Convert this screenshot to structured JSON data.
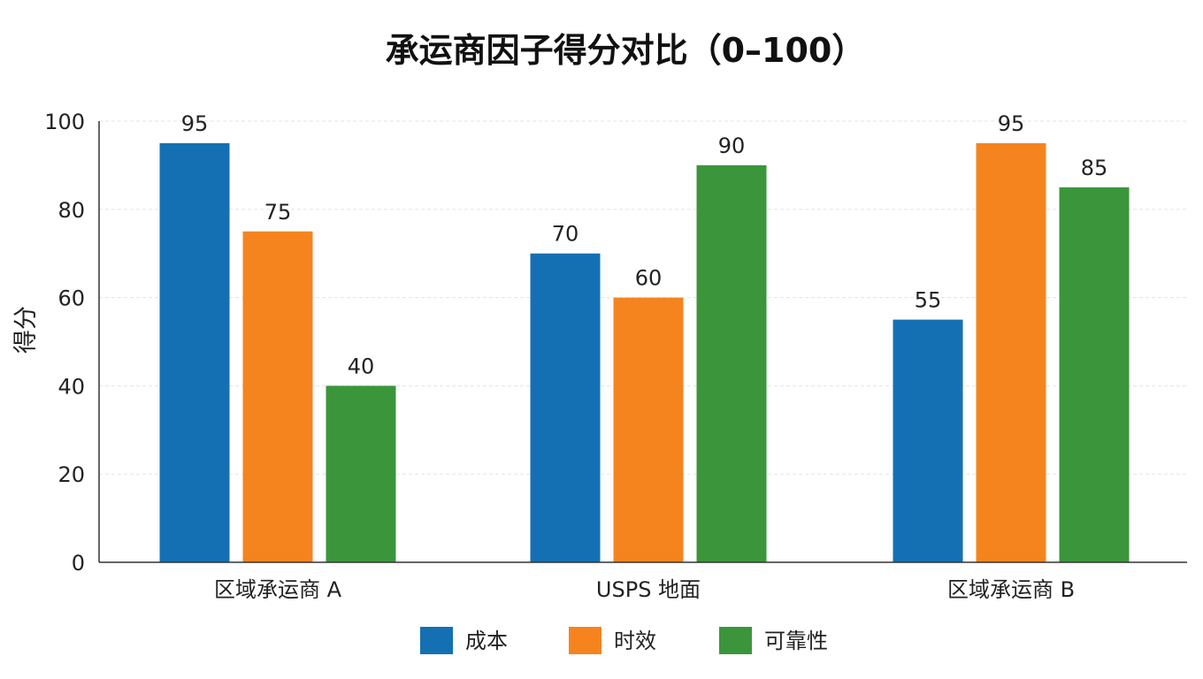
{
  "chart_data": {
    "type": "bar",
    "title": "承运商因子得分对比（0–100）",
    "xlabel": "",
    "ylabel": "得分",
    "ylim": [
      0,
      100
    ],
    "yticks": [
      "0",
      "20",
      "40",
      "60",
      "80",
      "100"
    ],
    "categories": [
      "区域承运商 A",
      "USPS 地面",
      "区域承运商 B"
    ],
    "series": [
      {
        "name": "成本",
        "values": [
          95,
          70,
          55
        ],
        "color": "#1570b3"
      },
      {
        "name": "时效",
        "values": [
          75,
          60,
          95
        ],
        "color": "#f5841f"
      },
      {
        "name": "可靠性",
        "values": [
          40,
          90,
          85
        ],
        "color": "#3b963b"
      }
    ],
    "grid": true,
    "legend": "bottom-center"
  }
}
